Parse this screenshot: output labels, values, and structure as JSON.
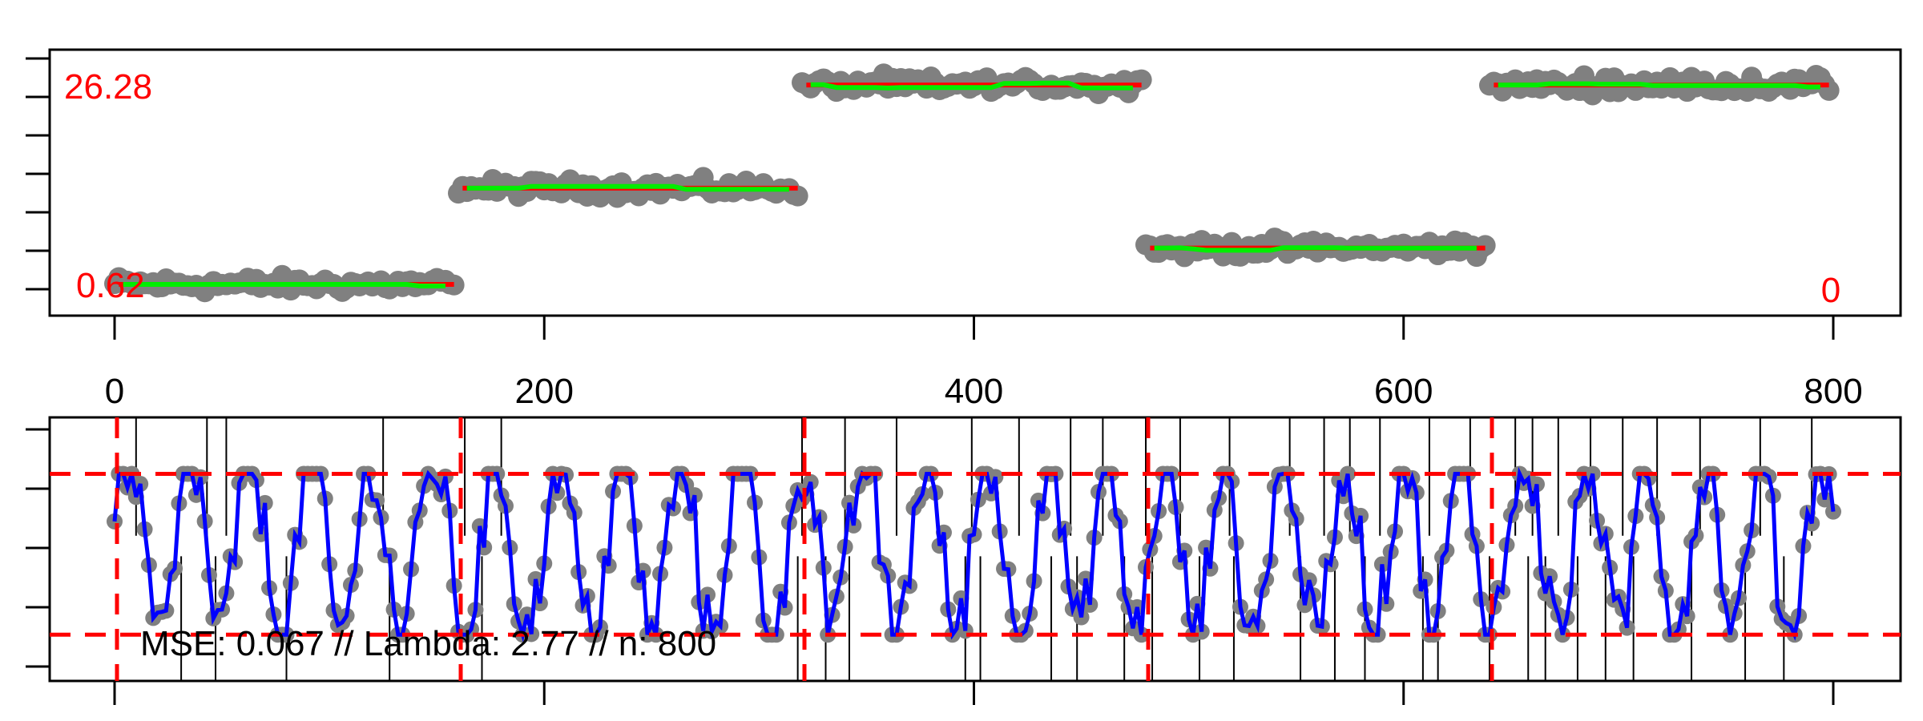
{
  "chart_data": [
    {
      "type": "scatter",
      "panel": "top",
      "xlim": [
        0,
        800
      ],
      "x_ticks": [
        0,
        200,
        400,
        600,
        800
      ],
      "x_tick_labels": [
        "0",
        "200",
        "400",
        "600",
        "800"
      ],
      "ylim": [
        0,
        30
      ],
      "y_tick_count": 7,
      "labels": {
        "max_value": "26.28",
        "min_value": "0.62",
        "right_value": "0"
      },
      "segments": [
        {
          "start": 0,
          "end": 160,
          "mean": 0.62
        },
        {
          "start": 160,
          "end": 320,
          "mean": 13.0
        },
        {
          "start": 320,
          "end": 480,
          "mean": 26.28
        },
        {
          "start": 480,
          "end": 640,
          "mean": 5.3
        },
        {
          "start": 640,
          "end": 800,
          "mean": 26.28
        }
      ],
      "point_spread": 0.9,
      "colors": {
        "points": "#808080",
        "truth": "#ff0000",
        "fit": "#00ee00",
        "axis": "#000000",
        "labels": "#ff0000"
      }
    },
    {
      "type": "line",
      "panel": "bottom",
      "xlim": [
        0,
        800
      ],
      "x_ticks": [
        0,
        200,
        400,
        600,
        800
      ],
      "ylim": [
        -0.1,
        1.05
      ],
      "y_tick_count": 5,
      "hlines": [
        0.07,
        0.85
      ],
      "changepoints": [
        0,
        160,
        320,
        480,
        640
      ],
      "spike_positions": [
        10,
        31,
        43,
        47,
        52,
        80,
        125,
        128,
        163,
        171,
        180,
        318,
        320,
        331,
        340,
        342,
        364,
        396,
        399,
        403,
        421,
        436,
        445,
        448,
        460,
        470,
        480,
        483,
        496,
        505,
        519,
        521,
        547,
        552,
        563,
        568,
        575,
        582,
        589,
        609,
        612,
        616,
        631,
        640,
        652,
        658,
        660,
        666,
        672,
        681,
        687,
        694,
        702,
        707,
        718,
        734,
        738,
        759,
        766,
        777,
        790
      ],
      "stats_text": "MSE: 0.067 // Lambda: 2.77 // n: 800",
      "colors": {
        "points": "#808080",
        "line": "#0000ff",
        "dashed": "#ff0000",
        "spikes": "#000000",
        "axis": "#000000"
      }
    }
  ]
}
